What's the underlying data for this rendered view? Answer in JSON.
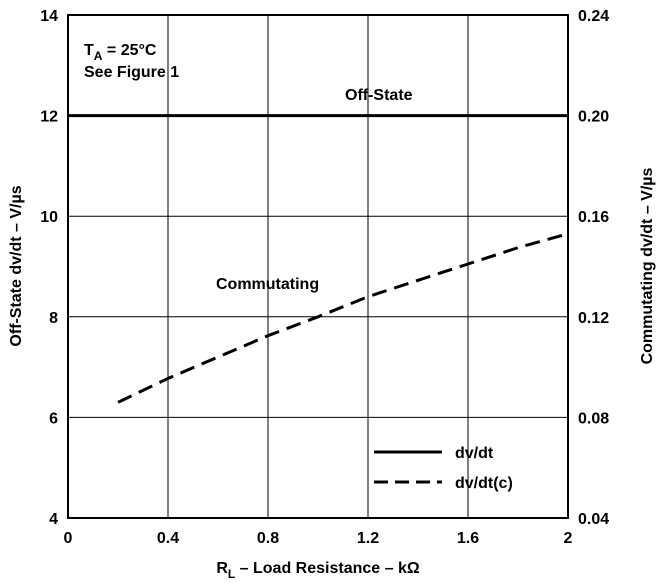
{
  "chart_data": {
    "type": "line",
    "xlabel": {
      "main": "R",
      "sub": "L",
      "rest": " – Load Resistance – kΩ"
    },
    "ylabel_left": "Off-State dv/dt – V/µs",
    "ylabel_right": "Commutating dv/dt – V/µs",
    "xlim": [
      0,
      2
    ],
    "ylim_left": [
      4,
      14
    ],
    "ylim_right": [
      0.04,
      0.24
    ],
    "x_ticks": [
      "0",
      "0.4",
      "0.8",
      "1.2",
      "1.6",
      "2"
    ],
    "y_left_ticks": [
      "4",
      "6",
      "8",
      "10",
      "12",
      "14"
    ],
    "y_right_ticks": [
      "0.04",
      "0.08",
      "0.12",
      "0.16",
      "0.20",
      "0.24"
    ],
    "grid": true,
    "conditions": {
      "line1_main": "T",
      "line1_sub": "A",
      "line1_rest": " = 25°C",
      "line2": "See Figure 1"
    },
    "annotations": {
      "off_state": "Off-State",
      "commutating": "Commutating"
    },
    "legend": {
      "placement": "bottom-right",
      "entries": [
        {
          "label": "dv/dt",
          "style": "solid"
        },
        {
          "label": "dv/dt(c)",
          "style": "dashed"
        }
      ]
    },
    "series": [
      {
        "label_key": "off_state",
        "axis": "left",
        "style": "solid",
        "x": [
          0,
          2
        ],
        "y": [
          12,
          12
        ]
      },
      {
        "label_key": "commutating",
        "axis": "right",
        "style": "dashed",
        "x": [
          0.2,
          0.4,
          0.6,
          0.8,
          1.0,
          1.2,
          1.4,
          1.6,
          1.8,
          2.0
        ],
        "y": [
          0.086,
          0.0955,
          0.104,
          0.1125,
          0.12,
          0.128,
          0.1345,
          0.141,
          0.1475,
          0.153
        ]
      }
    ]
  }
}
